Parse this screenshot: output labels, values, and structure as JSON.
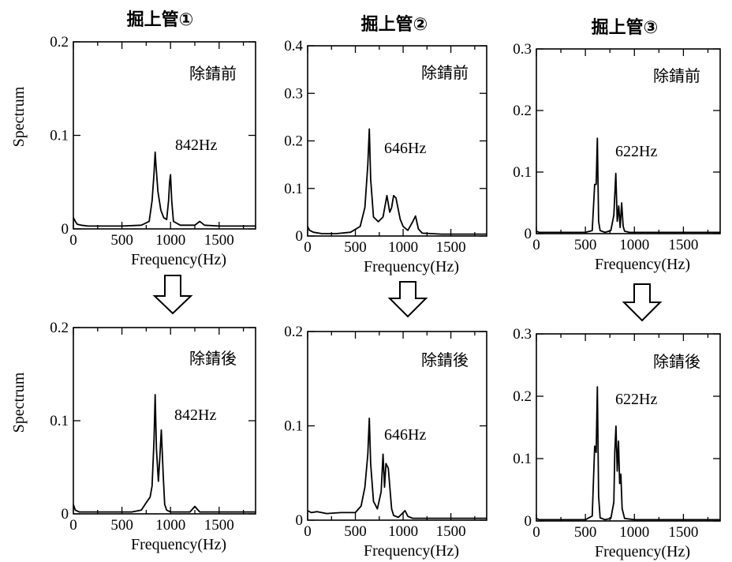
{
  "figure": {
    "column_titles": [
      "掘上管①",
      "掘上管②",
      "掘上管③"
    ],
    "row_ylabels": [
      "Spectrum",
      "Spectrum"
    ]
  },
  "chart_data": [
    {
      "type": "line",
      "title": "掘上管①",
      "label": "除錆前",
      "peak_label": "842Hz",
      "xlabel": "Frequency(Hz)",
      "ylabel": "Spectrum",
      "xlim": [
        0,
        1875
      ],
      "ylim": [
        0,
        0.2
      ],
      "x_ticks": [
        0,
        500,
        1000,
        1500
      ],
      "x_tick_labels": [
        "0",
        "500",
        "1000",
        "1500"
      ],
      "y_ticks": [
        0,
        0.1,
        0.2
      ],
      "y_tick_labels": [
        "0",
        "0.1",
        "0.2"
      ],
      "x": [
        0,
        20,
        40,
        80,
        150,
        300,
        500,
        700,
        780,
        810,
        830,
        842,
        852,
        870,
        900,
        930,
        960,
        980,
        990,
        1000,
        1012,
        1030,
        1100,
        1250,
        1300,
        1350,
        1500,
        1875
      ],
      "y": [
        0.012,
        0.008,
        0.005,
        0.004,
        0.003,
        0.003,
        0.003,
        0.004,
        0.008,
        0.03,
        0.06,
        0.082,
        0.065,
        0.04,
        0.02,
        0.012,
        0.01,
        0.03,
        0.05,
        0.058,
        0.03,
        0.008,
        0.004,
        0.004,
        0.008,
        0.004,
        0.003,
        0.003
      ]
    },
    {
      "type": "line",
      "title": "掘上管②",
      "label": "除錆前",
      "peak_label": "646Hz",
      "xlabel": "Frequency(Hz)",
      "ylabel": "",
      "xlim": [
        0,
        1875
      ],
      "ylim": [
        0,
        0.4
      ],
      "x_ticks": [
        0,
        500,
        1000,
        1500
      ],
      "x_tick_labels": [
        "0",
        "500",
        "1000",
        "1500"
      ],
      "y_ticks": [
        0,
        0.1,
        0.2,
        0.3,
        0.4
      ],
      "y_tick_labels": [
        "0",
        "0.1",
        "0.2",
        "0.3",
        "0.4"
      ],
      "x": [
        0,
        20,
        60,
        150,
        300,
        450,
        550,
        600,
        630,
        646,
        660,
        690,
        740,
        790,
        830,
        860,
        880,
        900,
        925,
        950,
        970,
        1000,
        1050,
        1100,
        1130,
        1160,
        1200,
        1400,
        1875
      ],
      "y": [
        0.02,
        0.012,
        0.008,
        0.005,
        0.005,
        0.008,
        0.02,
        0.06,
        0.15,
        0.225,
        0.12,
        0.04,
        0.03,
        0.04,
        0.085,
        0.05,
        0.06,
        0.085,
        0.08,
        0.055,
        0.035,
        0.02,
        0.012,
        0.03,
        0.042,
        0.015,
        0.006,
        0.004,
        0.004
      ]
    },
    {
      "type": "line",
      "title": "掘上管③",
      "label": "除錆前",
      "peak_label": "622Hz",
      "xlabel": "Frequency(Hz)",
      "ylabel": "",
      "xlim": [
        0,
        1875
      ],
      "ylim": [
        0,
        0.3
      ],
      "x_ticks": [
        0,
        500,
        1000,
        1500
      ],
      "x_tick_labels": [
        "0",
        "500",
        "1000",
        "1500"
      ],
      "y_ticks": [
        0,
        0.1,
        0.2,
        0.3
      ],
      "y_tick_labels": [
        "0",
        "0.1",
        "0.2",
        "0.3"
      ],
      "x": [
        0,
        30,
        100,
        300,
        500,
        570,
        595,
        610,
        622,
        635,
        650,
        700,
        760,
        790,
        810,
        825,
        840,
        855,
        870,
        885,
        900,
        950,
        1100,
        1875
      ],
      "y": [
        0.004,
        0.002,
        0.002,
        0.002,
        0.002,
        0.005,
        0.08,
        0.08,
        0.155,
        0.02,
        0.005,
        0.002,
        0.005,
        0.03,
        0.098,
        0.02,
        0.045,
        0.01,
        0.05,
        0.012,
        0.004,
        0.002,
        0.002,
        0.002
      ]
    },
    {
      "type": "line",
      "title": "",
      "label": "除錆後",
      "peak_label": "842Hz",
      "xlabel": "Frequency(Hz)",
      "ylabel": "Spectrum",
      "xlim": [
        0,
        1875
      ],
      "ylim": [
        0,
        0.2
      ],
      "x_ticks": [
        0,
        500,
        1000,
        1500
      ],
      "x_tick_labels": [
        "0",
        "500",
        "1000",
        "1500"
      ],
      "y_ticks": [
        0,
        0.1,
        0.2
      ],
      "y_tick_labels": [
        "0",
        "0.1",
        "0.2"
      ],
      "x": [
        0,
        20,
        60,
        200,
        400,
        600,
        700,
        750,
        790,
        810,
        830,
        842,
        855,
        875,
        890,
        905,
        925,
        940,
        960,
        1000,
        1200,
        1250,
        1300,
        1500,
        1875
      ],
      "y": [
        0.01,
        0.004,
        0.002,
        0.002,
        0.002,
        0.002,
        0.004,
        0.012,
        0.018,
        0.03,
        0.08,
        0.128,
        0.07,
        0.035,
        0.06,
        0.09,
        0.04,
        0.01,
        0.004,
        0.002,
        0.002,
        0.008,
        0.002,
        0.002,
        0.002
      ]
    },
    {
      "type": "line",
      "title": "",
      "label": "除錆後",
      "peak_label": "646Hz",
      "xlabel": "Frequency(Hz)",
      "ylabel": "",
      "xlim": [
        0,
        1875
      ],
      "ylim": [
        0,
        0.2
      ],
      "x_ticks": [
        0,
        500,
        1000,
        1500
      ],
      "x_tick_labels": [
        "0",
        "500",
        "1000",
        "1500"
      ],
      "y_ticks": [
        0,
        0.1,
        0.2
      ],
      "y_tick_labels": [
        "0",
        "0.1",
        "0.2"
      ],
      "x": [
        0,
        40,
        100,
        200,
        350,
        500,
        560,
        600,
        630,
        646,
        660,
        690,
        730,
        770,
        790,
        805,
        820,
        845,
        865,
        880,
        900,
        950,
        1000,
        1020,
        1050,
        1100,
        1300,
        1875
      ],
      "y": [
        0.01,
        0.008,
        0.009,
        0.007,
        0.008,
        0.008,
        0.015,
        0.035,
        0.07,
        0.108,
        0.06,
        0.02,
        0.012,
        0.03,
        0.07,
        0.035,
        0.06,
        0.055,
        0.03,
        0.012,
        0.005,
        0.003,
        0.008,
        0.01,
        0.004,
        0.002,
        0.002,
        0.002
      ]
    },
    {
      "type": "line",
      "title": "",
      "label": "除錆後",
      "peak_label": "622Hz",
      "xlabel": "Frequency(Hz)",
      "ylabel": "",
      "xlim": [
        0,
        1875
      ],
      "ylim": [
        0,
        0.3
      ],
      "x_ticks": [
        0,
        500,
        1000,
        1500
      ],
      "x_tick_labels": [
        "0",
        "500",
        "1000",
        "1500"
      ],
      "y_ticks": [
        0,
        0.1,
        0.2,
        0.3
      ],
      "y_tick_labels": [
        "0",
        "0.1",
        "0.2",
        "0.3"
      ],
      "x": [
        0,
        30,
        100,
        300,
        500,
        570,
        595,
        610,
        622,
        635,
        650,
        700,
        760,
        790,
        800,
        812,
        825,
        838,
        850,
        862,
        875,
        900,
        1000,
        1875
      ],
      "y": [
        0.004,
        0.002,
        0.002,
        0.002,
        0.002,
        0.008,
        0.12,
        0.11,
        0.215,
        0.04,
        0.005,
        0.002,
        0.004,
        0.03,
        0.11,
        0.152,
        0.08,
        0.128,
        0.06,
        0.075,
        0.02,
        0.004,
        0.002,
        0.002
      ]
    }
  ]
}
